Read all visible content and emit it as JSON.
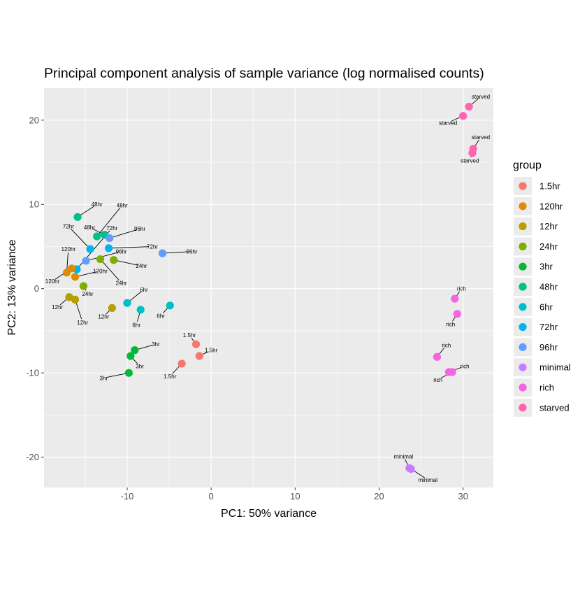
{
  "chart_data": {
    "type": "scatter",
    "title": "Principal component analysis of sample variance (log normalised counts)",
    "xlabel": "PC1: 50% variance",
    "ylabel": "PC2: 13% variance",
    "xlim": [
      -19.9,
      33.6
    ],
    "ylim": [
      -23.6,
      23.8
    ],
    "xticks": [
      -10,
      0,
      10,
      20,
      30
    ],
    "yticks": [
      -20,
      -10,
      0,
      10,
      20
    ],
    "xtick_labels": [
      "-10",
      "0",
      "10",
      "20",
      "30"
    ],
    "ytick_labels": [
      "-20",
      "-10",
      "0",
      "10",
      "20"
    ],
    "grid": true,
    "legend": {
      "title": "group",
      "position": "right",
      "entries": [
        {
          "name": "1.5hr",
          "color": "#F8766D"
        },
        {
          "name": "120hr",
          "color": "#DE8C00"
        },
        {
          "name": "12hr",
          "color": "#B79F00"
        },
        {
          "name": "24hr",
          "color": "#7CAE00"
        },
        {
          "name": "3hr",
          "color": "#00BA38"
        },
        {
          "name": "48hr",
          "color": "#00C08B"
        },
        {
          "name": "6hr",
          "color": "#00BFC4"
        },
        {
          "name": "72hr",
          "color": "#00B4F0"
        },
        {
          "name": "96hr",
          "color": "#619CFF"
        },
        {
          "name": "minimal",
          "color": "#C77CFF"
        },
        {
          "name": "rich",
          "color": "#F564E3"
        },
        {
          "name": "starved",
          "color": "#FF64B0"
        }
      ]
    },
    "points": [
      {
        "group": "starved",
        "x": 30.7,
        "y": 21.6,
        "label": "starved",
        "lx": 32.1,
        "ly": 22.8
      },
      {
        "group": "starved",
        "x": 30.0,
        "y": 20.5,
        "label": "starved",
        "lx": 28.2,
        "ly": 19.7
      },
      {
        "group": "starved",
        "x": 31.2,
        "y": 16.6,
        "label": "starved",
        "lx": 32.1,
        "ly": 18.0
      },
      {
        "group": "starved",
        "x": 31.1,
        "y": 16.1,
        "label": "starved",
        "lx": 30.8,
        "ly": 15.2
      },
      {
        "group": "48hr",
        "x": -15.9,
        "y": 8.5,
        "label": "48hr",
        "lx": -13.6,
        "ly": 10.0
      },
      {
        "group": "48hr",
        "x": -13.6,
        "y": 6.2,
        "label": "48hr",
        "lx": -10.6,
        "ly": 9.9
      },
      {
        "group": "48hr",
        "x": -12.7,
        "y": 6.4,
        "label": "48hr",
        "lx": -14.5,
        "ly": 7.3
      },
      {
        "group": "72hr",
        "x": -14.4,
        "y": 4.7,
        "label": "72hr",
        "lx": -17.0,
        "ly": 7.4
      },
      {
        "group": "72hr",
        "x": -12.2,
        "y": 4.8,
        "label": "72hr",
        "lx": -7.0,
        "ly": 5.0
      },
      {
        "group": "72hr",
        "x": -16.0,
        "y": 2.3,
        "label": "72hr",
        "lx": -11.8,
        "ly": 7.2
      },
      {
        "group": "96hr",
        "x": -12.1,
        "y": 6.0,
        "label": "96hr",
        "lx": -8.5,
        "ly": 7.1
      },
      {
        "group": "96hr",
        "x": -14.9,
        "y": 3.3,
        "label": "96hr",
        "lx": -10.7,
        "ly": 4.4
      },
      {
        "group": "96hr",
        "x": -5.8,
        "y": 4.2,
        "label": "96hr",
        "lx": -2.3,
        "ly": 4.4
      },
      {
        "group": "120hr",
        "x": -17.2,
        "y": 1.9,
        "label": "120hr",
        "lx": -17.0,
        "ly": 4.7
      },
      {
        "group": "120hr",
        "x": -16.6,
        "y": 2.4,
        "label": "120hr",
        "lx": -18.9,
        "ly": 0.9
      },
      {
        "group": "120hr",
        "x": -16.2,
        "y": 1.4,
        "label": "120hr",
        "lx": -13.2,
        "ly": 2.1
      },
      {
        "group": "24hr",
        "x": -13.2,
        "y": 3.5,
        "label": "24hr",
        "lx": -10.7,
        "ly": 0.7
      },
      {
        "group": "24hr",
        "x": -11.6,
        "y": 3.4,
        "label": "24hr",
        "lx": -8.3,
        "ly": 2.7
      },
      {
        "group": "24hr",
        "x": -15.2,
        "y": 0.3,
        "label": "24hr",
        "lx": -14.7,
        "ly": -0.6
      },
      {
        "group": "12hr",
        "x": -16.9,
        "y": -1.0,
        "label": "12hr",
        "lx": -18.3,
        "ly": -2.2
      },
      {
        "group": "12hr",
        "x": -16.2,
        "y": -1.3,
        "label": "12hr",
        "lx": -15.3,
        "ly": -4.0
      },
      {
        "group": "12hr",
        "x": -11.8,
        "y": -2.3,
        "label": "12hr",
        "lx": -12.8,
        "ly": -3.3
      },
      {
        "group": "6hr",
        "x": -10.0,
        "y": -1.7,
        "label": "6hr",
        "lx": -8.0,
        "ly": -0.1
      },
      {
        "group": "6hr",
        "x": -8.4,
        "y": -2.5,
        "label": "6hr",
        "lx": -8.9,
        "ly": -4.3
      },
      {
        "group": "6hr",
        "x": -4.9,
        "y": -2.0,
        "label": "6hr",
        "lx": -6.0,
        "ly": -3.2
      },
      {
        "group": "1.5hr",
        "x": -1.8,
        "y": -6.6,
        "label": "1.5hr",
        "lx": -2.6,
        "ly": -5.5
      },
      {
        "group": "1.5hr",
        "x": -1.4,
        "y": -8.0,
        "label": "1.5hr",
        "lx": 0.0,
        "ly": -7.3
      },
      {
        "group": "1.5hr",
        "x": -3.5,
        "y": -8.9,
        "label": "1.5hr",
        "lx": -4.9,
        "ly": -10.4
      },
      {
        "group": "3hr",
        "x": -9.1,
        "y": -7.3,
        "label": "3hr",
        "lx": -6.6,
        "ly": -6.6
      },
      {
        "group": "3hr",
        "x": -9.6,
        "y": -8.0,
        "label": "3hr",
        "lx": -8.5,
        "ly": -9.2
      },
      {
        "group": "3hr",
        "x": -9.8,
        "y": -10.0,
        "label": "3hr",
        "lx": -12.8,
        "ly": -10.6
      },
      {
        "group": "rich",
        "x": 29.0,
        "y": -1.2,
        "label": "rich",
        "lx": 29.8,
        "ly": 0.0
      },
      {
        "group": "rich",
        "x": 29.3,
        "y": -3.0,
        "label": "rich",
        "lx": 28.5,
        "ly": -4.2
      },
      {
        "group": "rich",
        "x": 26.9,
        "y": -8.1,
        "label": "rich",
        "lx": 28.0,
        "ly": -6.7
      },
      {
        "group": "rich",
        "x": 28.3,
        "y": -9.9,
        "label": "rich",
        "lx": 30.2,
        "ly": -9.2
      },
      {
        "group": "rich",
        "x": 28.7,
        "y": -9.9,
        "label": "rich",
        "lx": 27.0,
        "ly": -10.8
      },
      {
        "group": "minimal",
        "x": 23.6,
        "y": -21.3,
        "label": "minimal",
        "lx": 22.9,
        "ly": -19.9
      },
      {
        "group": "minimal",
        "x": 23.8,
        "y": -21.4,
        "label": "minimal",
        "lx": 25.8,
        "ly": -22.7
      }
    ]
  }
}
